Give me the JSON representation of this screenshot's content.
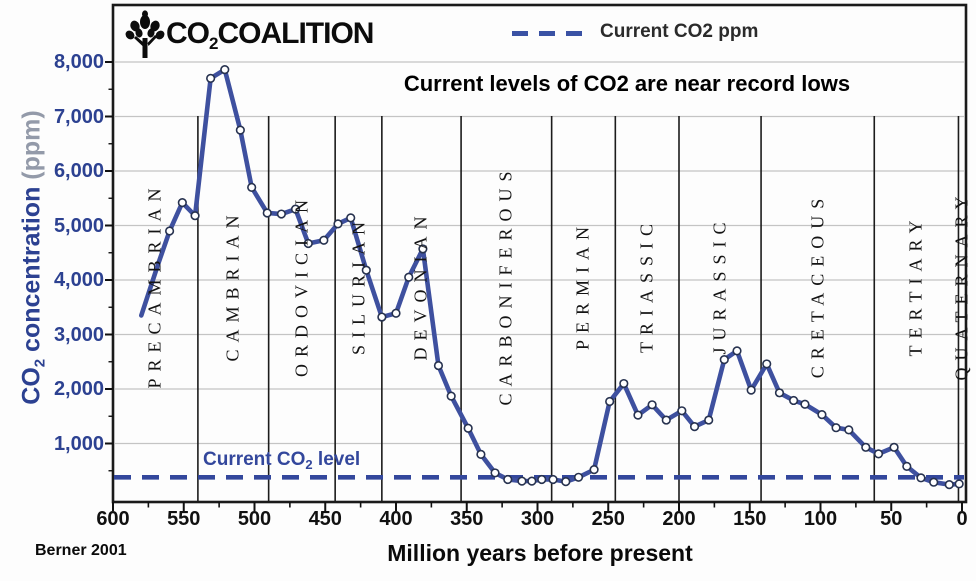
{
  "logo": {
    "pre": "CO",
    "sub": "2",
    "post": "COALITION"
  },
  "legend": {
    "label": "Current CO2 ppm"
  },
  "header": {
    "title": "Current levels of CO2 are near record lows"
  },
  "attribution": "Berner 2001",
  "axes": {
    "x_label": "Million years before present",
    "y_label_pre": "CO",
    "y_label_sub": "2",
    "y_label_post": " concentration",
    "y_label_unit": " (ppm)",
    "x_ticks": [
      600,
      550,
      500,
      450,
      400,
      350,
      300,
      250,
      200,
      150,
      100,
      50,
      0
    ],
    "x_minor_tick_step": 25,
    "y_ticks": [
      {
        "value": 1000,
        "label": "1,000"
      },
      {
        "value": 2000,
        "label": "2,000"
      },
      {
        "value": 3000,
        "label": "3,000"
      },
      {
        "value": 4000,
        "label": "4,000"
      },
      {
        "value": 5000,
        "label": "5,000"
      },
      {
        "value": 6000,
        "label": "6,000"
      },
      {
        "value": 7000,
        "label": "7,000"
      },
      {
        "value": 8000,
        "label": "8,000"
      }
    ]
  },
  "current_level": {
    "pre": "Current CO",
    "sub": "2",
    "post": " level",
    "value_ppm": 380
  },
  "periods": [
    {
      "name": "PRECAMBRIAN",
      "from": 600,
      "to": 540
    },
    {
      "name": "CAMBRIAN",
      "from": 540,
      "to": 490
    },
    {
      "name": "ORDOVICIAN",
      "from": 490,
      "to": 443
    },
    {
      "name": "SILURIAN",
      "from": 443,
      "to": 410
    },
    {
      "name": "DEVONIAN",
      "from": 410,
      "to": 354
    },
    {
      "name": "CARBONIFEROUS",
      "from": 354,
      "to": 290
    },
    {
      "name": "PERMIAN",
      "from": 290,
      "to": 245
    },
    {
      "name": "TRIASSIC",
      "from": 245,
      "to": 200
    },
    {
      "name": "JURASSIC",
      "from": 200,
      "to": 142
    },
    {
      "name": "CRETACEOUS",
      "from": 142,
      "to": 62
    },
    {
      "name": "TERTIARY",
      "from": 62,
      "to": 2.5
    },
    {
      "name": "QUATERNARY",
      "from": 2.5,
      "to": 0
    }
  ],
  "chart_data": {
    "type": "line",
    "title": "Current levels of CO2 are near record lows",
    "xlabel": "Million years before present",
    "ylabel": "CO2 concentration (ppm)",
    "xlim": [
      600,
      0
    ],
    "ylim": [
      0,
      9100
    ],
    "grid": "horizontal-major",
    "legend_position": "top-center",
    "legend_entries": [
      "Current CO2 ppm"
    ],
    "current_co2_dashed_line_ppm": 380,
    "annotations": [
      "Current CO2 level",
      "Berner 2001"
    ],
    "series": [
      {
        "name": "CO2 concentration (ppm), Berner 2001",
        "marker": "open-circle",
        "points": [
          [
            580,
            3350
          ],
          [
            568,
            4300
          ],
          [
            560,
            4900
          ],
          [
            551,
            5420
          ],
          [
            542,
            5180
          ],
          [
            531,
            7700
          ],
          [
            521,
            7860
          ],
          [
            510,
            6750
          ],
          [
            502,
            5700
          ],
          [
            491,
            5230
          ],
          [
            481,
            5210
          ],
          [
            471,
            5300
          ],
          [
            462,
            4670
          ],
          [
            451,
            4730
          ],
          [
            441,
            5030
          ],
          [
            432,
            5140
          ],
          [
            421,
            4180
          ],
          [
            410,
            3320
          ],
          [
            400,
            3390
          ],
          [
            391,
            4050
          ],
          [
            381,
            4570
          ],
          [
            370,
            2430
          ],
          [
            361,
            1870
          ],
          [
            349,
            1280
          ],
          [
            340,
            800
          ],
          [
            330,
            460
          ],
          [
            321,
            340
          ],
          [
            311,
            310
          ],
          [
            304,
            310
          ],
          [
            297,
            340
          ],
          [
            289,
            340
          ],
          [
            280,
            300
          ],
          [
            271,
            380
          ],
          [
            260,
            520
          ],
          [
            249,
            1770
          ],
          [
            239,
            2100
          ],
          [
            229,
            1520
          ],
          [
            219,
            1710
          ],
          [
            209,
            1430
          ],
          [
            198,
            1600
          ],
          [
            189,
            1310
          ],
          [
            179,
            1430
          ],
          [
            168,
            2540
          ],
          [
            159,
            2700
          ],
          [
            149,
            1980
          ],
          [
            138,
            2460
          ],
          [
            129,
            1930
          ],
          [
            119,
            1790
          ],
          [
            111,
            1720
          ],
          [
            99,
            1530
          ],
          [
            89,
            1290
          ],
          [
            80,
            1250
          ],
          [
            68,
            930
          ],
          [
            59,
            810
          ],
          [
            48,
            930
          ],
          [
            39,
            580
          ],
          [
            29,
            370
          ],
          [
            20,
            290
          ],
          [
            9,
            245
          ],
          [
            2,
            260
          ]
        ]
      }
    ]
  },
  "colors": {
    "curve": "#3e509f",
    "dashed_line": "#33479c",
    "axis_text_blue": "#2c4191",
    "grid": "#c4c4c4",
    "frame": "#1a1a1a",
    "marker_fill": "#ffffff",
    "marker_stroke": "#27324f"
  }
}
